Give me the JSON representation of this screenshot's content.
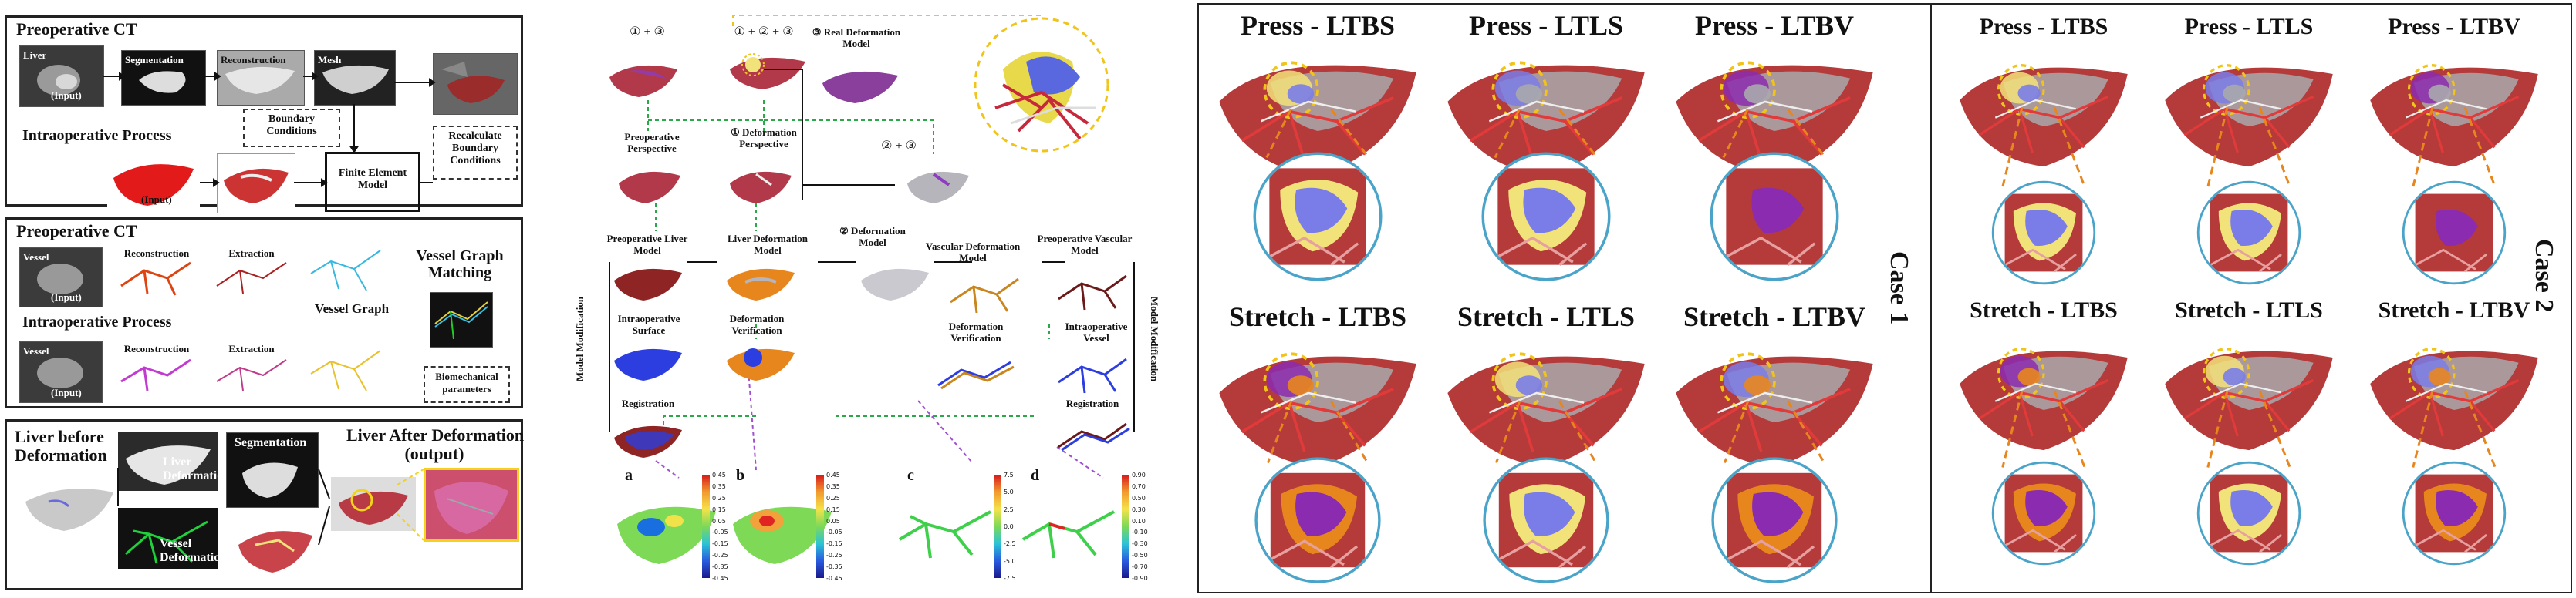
{
  "left": {
    "p1": {
      "title": "Preoperative CT",
      "liver_label": "Liver",
      "input_label": "(Input)",
      "seg": "Segmentation",
      "recon": "Reconstruction",
      "mesh": "Mesh",
      "boundary": "Boundary\nConditions",
      "intra": "Intraoperative Process",
      "input2": "(Input)",
      "fem": "Finite Element\nModel",
      "recalc": "Recalculate\nBoundary\nConditions"
    },
    "p2": {
      "title": "Preoperative CT",
      "vessel": "Vessel",
      "input": "(Input)",
      "recon": "Reconstruction",
      "extract": "Extraction",
      "graph_match": "Vessel Graph\nMatching",
      "vessel_graph": "Vessel Graph",
      "intra": "Intraoperative Process",
      "vessel2": "Vessel",
      "input2": "(Input)",
      "recon2": "Reconstruction",
      "extract2": "Extraction",
      "biomech": "Biomechanical\nparameters"
    },
    "p3": {
      "liver_before": "Liver before\nDeformation",
      "liver_def": "Liver\nDeformation",
      "seg": "Segmentation",
      "vessel_def": "Vessel\nDeformation",
      "after": "Liver After Deformation\n(output)"
    }
  },
  "middle": {
    "top": {
      "c13": "① + ③",
      "c123": "① + ② + ③",
      "real": "③ Real Deformation\nModel",
      "c23": "② + ③",
      "pre_persp": "Preoperative\nPerspective",
      "def_persp": "① Deformation\nPerspective",
      "def_model": "② Deformation\nModel"
    },
    "flow": {
      "pre_liver": "Preoperative Liver\nModel",
      "liver_def": "Liver Deformation\nModel",
      "vasc_def": "Vascular Deformation\nModel",
      "pre_vasc": "Preoperative Vascular\nModel",
      "intra_surf": "Intraoperative\nSurface",
      "def_verif": "Deformation\nVerification",
      "def_verif2": "Deformation\nVerification",
      "intra_vessel": "Intraoperative\nVessel",
      "reg": "Registration",
      "reg2": "Registration",
      "model_mod": "Model Modification",
      "model_mod2": "Model Modification"
    },
    "letters": [
      "a",
      "b",
      "c",
      "d"
    ],
    "scales": [
      [
        "0.45",
        "0.35",
        "0.25",
        "0.15",
        "0.05",
        "-0.05",
        "-0.15",
        "-0.25",
        "-0.35",
        "-0.45"
      ],
      [
        "0.45",
        "0.35",
        "0.25",
        "0.15",
        "0.05",
        "-0.05",
        "-0.15",
        "-0.25",
        "-0.35",
        "-0.45"
      ],
      [
        "7.5",
        "5.0",
        "2.5",
        "0.0",
        "-2.5",
        "-5.0",
        "-7.5"
      ],
      [
        "0.90",
        "0.70",
        "0.50",
        "0.30",
        "0.10",
        "-0.10",
        "-0.30",
        "-0.50",
        "-0.70",
        "-0.90"
      ]
    ]
  },
  "case1": {
    "label": "Case 1",
    "top": [
      "Press - LTBS",
      "Press - LTLS",
      "Press - LTBV"
    ],
    "bottom": [
      "Stretch - LTBS",
      "Stretch - LTLS",
      "Stretch - LTBV"
    ]
  },
  "case2": {
    "label": "Case 2",
    "top": [
      "Press - LTBS",
      "Press - LTLS",
      "Press - LTBV"
    ],
    "bottom": [
      "Stretch - LTBS",
      "Stretch - LTLS",
      "Stretch - LTBV"
    ]
  },
  "colors": {
    "liver": "#b53a3a",
    "liver_dark": "#8e2424",
    "gray": "#a9a9ad",
    "yellow": "#f2e27a",
    "blue": "#7a7de8",
    "orange": "#e8861e",
    "purple": "#8b2bb0",
    "circle": "#4aa3c8",
    "dashed_yellow": "#f0c419",
    "dashed_green": "#2aa84a",
    "dashed_purple": "#a050d0"
  }
}
